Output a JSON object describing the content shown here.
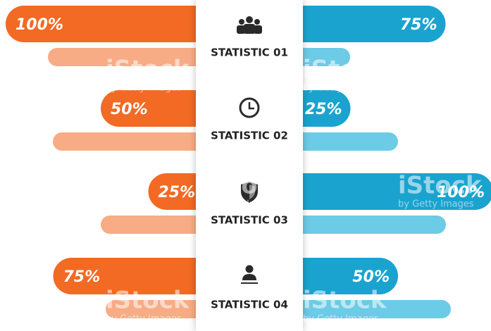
{
  "chart_data": {
    "type": "butterfly",
    "categories": [
      "STATISTIC 01",
      "STATISTIC 02",
      "STATISTIC 03",
      "STATISTIC 04"
    ],
    "xlim": [
      0,
      100
    ],
    "series": [
      {
        "name": "left",
        "color": "#f26a23",
        "values": [
          100,
          50,
          25,
          75
        ],
        "value_labels": [
          "100%",
          "50%",
          "25%",
          "75%"
        ]
      },
      {
        "name": "right",
        "color": "#1aa3cf",
        "values": [
          75,
          25,
          100,
          50
        ],
        "value_labels": [
          "75%",
          "25%",
          "100%",
          "50%"
        ]
      }
    ],
    "watermark": {
      "brand": "iStock",
      "credit": "by Getty Images"
    }
  }
}
